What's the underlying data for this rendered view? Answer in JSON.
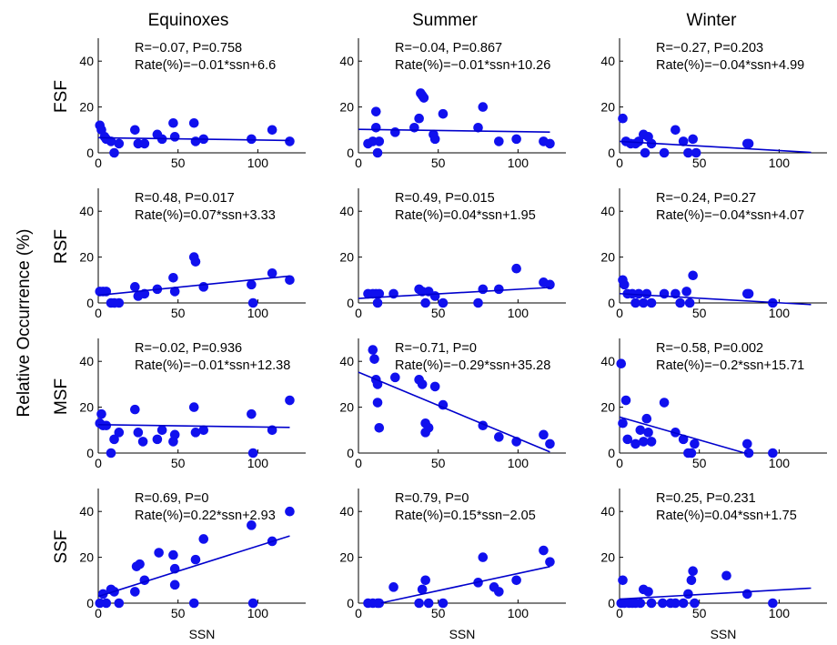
{
  "figure": {
    "ylabel": "Relative Occurrence (%)",
    "xlabel": "SSN",
    "columns": [
      "Equinoxes",
      "Summer",
      "Winter"
    ],
    "rows": [
      "FSF",
      "RSF",
      "MSF",
      "SSF"
    ]
  },
  "colors": {
    "marker": "#1010ee",
    "fit": "#0000cc",
    "axis": "#000000"
  },
  "chart_data": [
    {
      "type": "scatter",
      "row": "FSF",
      "column": "Equinoxes",
      "xlim": [
        0,
        130
      ],
      "ylim": [
        0,
        50
      ],
      "xticks": [
        0,
        50,
        100
      ],
      "yticks": [
        0,
        20,
        40
      ],
      "annotation": [
        "R=−0.07, P=0.758",
        "Rate(%)=−0.01*ssn+6.6"
      ],
      "fit": {
        "slope": -0.01,
        "intercept": 6.6,
        "x": [
          0,
          120
        ]
      },
      "x": [
        1,
        2,
        4,
        5,
        8,
        10,
        13,
        23,
        25,
        29,
        37,
        40,
        47,
        48,
        60,
        61,
        66,
        96,
        109,
        120
      ],
      "y": [
        12,
        10,
        7,
        6,
        5,
        0,
        4,
        10,
        4,
        4,
        8,
        6,
        13,
        7,
        13,
        5,
        6,
        6,
        10,
        5
      ]
    },
    {
      "type": "scatter",
      "row": "FSF",
      "column": "Summer",
      "xlim": [
        0,
        130
      ],
      "ylim": [
        0,
        50
      ],
      "xticks": [
        0,
        50,
        100
      ],
      "yticks": [
        0,
        20,
        40
      ],
      "annotation": [
        "R=−0.04, P=0.867",
        "Rate(%)=−0.01*ssn+10.26"
      ],
      "fit": {
        "slope": -0.01,
        "intercept": 10.26,
        "x": [
          0,
          120
        ]
      },
      "x": [
        6,
        9,
        11,
        11,
        12,
        13,
        23,
        35,
        38,
        39,
        40,
        41,
        47,
        48,
        53,
        75,
        78,
        88,
        99,
        116,
        120
      ],
      "y": [
        4,
        5,
        18,
        11,
        0,
        5,
        9,
        11,
        15,
        26,
        25,
        24,
        8,
        6,
        17,
        11,
        20,
        5,
        6,
        5,
        4
      ]
    },
    {
      "type": "scatter",
      "row": "FSF",
      "column": "Winter",
      "xlim": [
        0,
        130
      ],
      "ylim": [
        0,
        50
      ],
      "xticks": [
        0,
        50,
        100
      ],
      "yticks": [
        0,
        20,
        40
      ],
      "annotation": [
        "R=−0.27, P=0.203",
        "Rate(%)=−0.04*ssn+4.99"
      ],
      "fit": {
        "slope": -0.04,
        "intercept": 4.99,
        "x": [
          0,
          120
        ]
      },
      "x": [
        2,
        4,
        7,
        10,
        12,
        15,
        16,
        18,
        20,
        28,
        35,
        40,
        43,
        46,
        48,
        80,
        81
      ],
      "y": [
        15,
        5,
        4,
        4,
        5,
        8,
        0,
        7,
        4,
        0,
        10,
        5,
        0,
        6,
        0,
        4,
        4
      ]
    },
    {
      "type": "scatter",
      "row": "RSF",
      "column": "Equinoxes",
      "xlim": [
        0,
        130
      ],
      "ylim": [
        0,
        50
      ],
      "xticks": [
        0,
        50,
        100
      ],
      "yticks": [
        0,
        20,
        40
      ],
      "annotation": [
        "R=0.48, P=0.017",
        "Rate(%)=0.07*ssn+3.33"
      ],
      "fit": {
        "slope": 0.07,
        "intercept": 3.33,
        "x": [
          0,
          120
        ]
      },
      "x": [
        1,
        3,
        5,
        8,
        10,
        13,
        23,
        25,
        29,
        37,
        47,
        48,
        60,
        61,
        66,
        96,
        97,
        109,
        120
      ],
      "y": [
        5,
        5,
        5,
        0,
        0,
        0,
        7,
        3,
        4,
        6,
        11,
        5,
        20,
        18,
        7,
        8,
        0,
        13,
        10
      ]
    },
    {
      "type": "scatter",
      "row": "RSF",
      "column": "Summer",
      "xlim": [
        0,
        130
      ],
      "ylim": [
        0,
        50
      ],
      "xticks": [
        0,
        50,
        100
      ],
      "yticks": [
        0,
        20,
        40
      ],
      "annotation": [
        "R=0.49, P=0.015",
        "Rate(%)=0.04*ssn+1.95"
      ],
      "fit": {
        "slope": 0.04,
        "intercept": 1.95,
        "x": [
          0,
          120
        ]
      },
      "x": [
        6,
        9,
        11,
        12,
        13,
        22,
        38,
        40,
        42,
        44,
        48,
        53,
        75,
        78,
        88,
        99,
        116,
        120
      ],
      "y": [
        4,
        4,
        4,
        0,
        4,
        4,
        6,
        5,
        0,
        5,
        3,
        0,
        0,
        6,
        6,
        15,
        9,
        8
      ]
    },
    {
      "type": "scatter",
      "row": "RSF",
      "column": "Winter",
      "xlim": [
        0,
        130
      ],
      "ylim": [
        0,
        50
      ],
      "xticks": [
        0,
        50,
        100
      ],
      "yticks": [
        0,
        20,
        40
      ],
      "annotation": [
        "R=−0.24, P=0.27",
        "Rate(%)=−0.04*ssn+4.07"
      ],
      "fit": {
        "slope": -0.04,
        "intercept": 4.07,
        "x": [
          0,
          120
        ]
      },
      "x": [
        2,
        3,
        5,
        8,
        10,
        12,
        15,
        17,
        20,
        28,
        35,
        38,
        42,
        44,
        46,
        80,
        81,
        96
      ],
      "y": [
        10,
        8,
        4,
        4,
        0,
        4,
        0,
        4,
        0,
        4,
        4,
        0,
        5,
        0,
        12,
        4,
        4,
        0
      ]
    },
    {
      "type": "scatter",
      "row": "MSF",
      "column": "Equinoxes",
      "xlim": [
        0,
        130
      ],
      "ylim": [
        0,
        50
      ],
      "xticks": [
        0,
        50,
        100
      ],
      "yticks": [
        0,
        20,
        40
      ],
      "annotation": [
        "R=−0.02, P=0.936",
        "Rate(%)=−0.01*ssn+12.38"
      ],
      "fit": {
        "slope": -0.01,
        "intercept": 12.38,
        "x": [
          0,
          120
        ]
      },
      "x": [
        1,
        2,
        3,
        5,
        8,
        10,
        13,
        23,
        25,
        28,
        37,
        40,
        47,
        48,
        60,
        61,
        66,
        96,
        97,
        109,
        120
      ],
      "y": [
        13,
        17,
        12,
        12,
        0,
        6,
        9,
        19,
        9,
        5,
        6,
        10,
        5,
        8,
        20,
        9,
        10,
        17,
        0,
        10,
        23
      ]
    },
    {
      "type": "scatter",
      "row": "MSF",
      "column": "Summer",
      "xlim": [
        0,
        130
      ],
      "ylim": [
        0,
        50
      ],
      "xticks": [
        0,
        50,
        100
      ],
      "yticks": [
        0,
        20,
        40
      ],
      "annotation": [
        "R=−0.71, P=0",
        "Rate(%)=−0.29*ssn+35.28"
      ],
      "fit": {
        "slope": -0.29,
        "intercept": 35.28,
        "x": [
          0,
          120
        ]
      },
      "x": [
        9,
        10,
        11,
        12,
        12,
        13,
        23,
        38,
        40,
        42,
        42,
        44,
        48,
        53,
        78,
        88,
        99,
        116,
        120
      ],
      "y": [
        45,
        41,
        32,
        30,
        22,
        11,
        33,
        32,
        30,
        9,
        13,
        11,
        29,
        21,
        12,
        7,
        5,
        8,
        4
      ]
    },
    {
      "type": "scatter",
      "row": "MSF",
      "column": "Winter",
      "xlim": [
        0,
        130
      ],
      "ylim": [
        0,
        50
      ],
      "xticks": [
        0,
        50,
        100
      ],
      "yticks": [
        0,
        20,
        40
      ],
      "annotation": [
        "R=−0.58, P=0.002",
        "Rate(%)=−0.2*ssn+15.71"
      ],
      "fit": {
        "slope": -0.2,
        "intercept": 15.71,
        "x": [
          0,
          80
        ]
      },
      "x": [
        1,
        2,
        4,
        5,
        10,
        13,
        15,
        17,
        18,
        20,
        28,
        35,
        40,
        43,
        45,
        47,
        80,
        81,
        96
      ],
      "y": [
        39,
        13,
        23,
        6,
        4,
        10,
        5,
        15,
        9,
        5,
        22,
        9,
        6,
        0,
        0,
        4,
        4,
        0,
        0
      ]
    },
    {
      "type": "scatter",
      "row": "SSF",
      "column": "Equinoxes",
      "xlim": [
        0,
        130
      ],
      "ylim": [
        0,
        50
      ],
      "xticks": [
        0,
        50,
        100
      ],
      "yticks": [
        0,
        20,
        40
      ],
      "annotation": [
        "R=0.69, P=0",
        "Rate(%)=0.22*ssn+2.93"
      ],
      "fit": {
        "slope": 0.22,
        "intercept": 2.93,
        "x": [
          0,
          120
        ]
      },
      "x": [
        1,
        3,
        5,
        8,
        10,
        13,
        23,
        24,
        26,
        29,
        38,
        47,
        48,
        48,
        60,
        61,
        66,
        96,
        97,
        109,
        120
      ],
      "y": [
        0,
        4,
        0,
        6,
        5,
        0,
        5,
        16,
        17,
        10,
        22,
        21,
        15,
        8,
        0,
        19,
        28,
        34,
        0,
        27,
        40
      ]
    },
    {
      "type": "scatter",
      "row": "SSF",
      "column": "Summer",
      "xlim": [
        0,
        130
      ],
      "ylim": [
        0,
        50
      ],
      "xticks": [
        0,
        50,
        100
      ],
      "yticks": [
        0,
        20,
        40
      ],
      "annotation": [
        "R=0.79, P=0",
        "Rate(%)=0.15*ssn−2.05"
      ],
      "fit": {
        "slope": 0.15,
        "intercept": -2.05,
        "x": [
          14,
          120
        ]
      },
      "x": [
        6,
        9,
        12,
        13,
        22,
        38,
        40,
        42,
        44,
        53,
        75,
        78,
        85,
        88,
        99,
        116,
        120
      ],
      "y": [
        0,
        0,
        0,
        0,
        7,
        0,
        6,
        10,
        0,
        0,
        9,
        20,
        7,
        5,
        10,
        23,
        18
      ]
    },
    {
      "type": "scatter",
      "row": "SSF",
      "column": "Winter",
      "xlim": [
        0,
        130
      ],
      "ylim": [
        0,
        50
      ],
      "xticks": [
        0,
        50,
        100
      ],
      "yticks": [
        0,
        20,
        40
      ],
      "annotation": [
        "R=0.25, P=0.231",
        "Rate(%)=0.04*ssn+1.75"
      ],
      "fit": {
        "slope": 0.04,
        "intercept": 1.75,
        "x": [
          0,
          120
        ]
      },
      "x": [
        1,
        2,
        3,
        6,
        8,
        10,
        13,
        15,
        18,
        20,
        27,
        32,
        35,
        40,
        43,
        45,
        46,
        47,
        67,
        80,
        96
      ],
      "y": [
        0,
        10,
        0,
        0,
        0,
        0,
        0,
        6,
        5,
        0,
        0,
        0,
        0,
        0,
        4,
        10,
        14,
        0,
        12,
        4,
        0
      ]
    }
  ]
}
